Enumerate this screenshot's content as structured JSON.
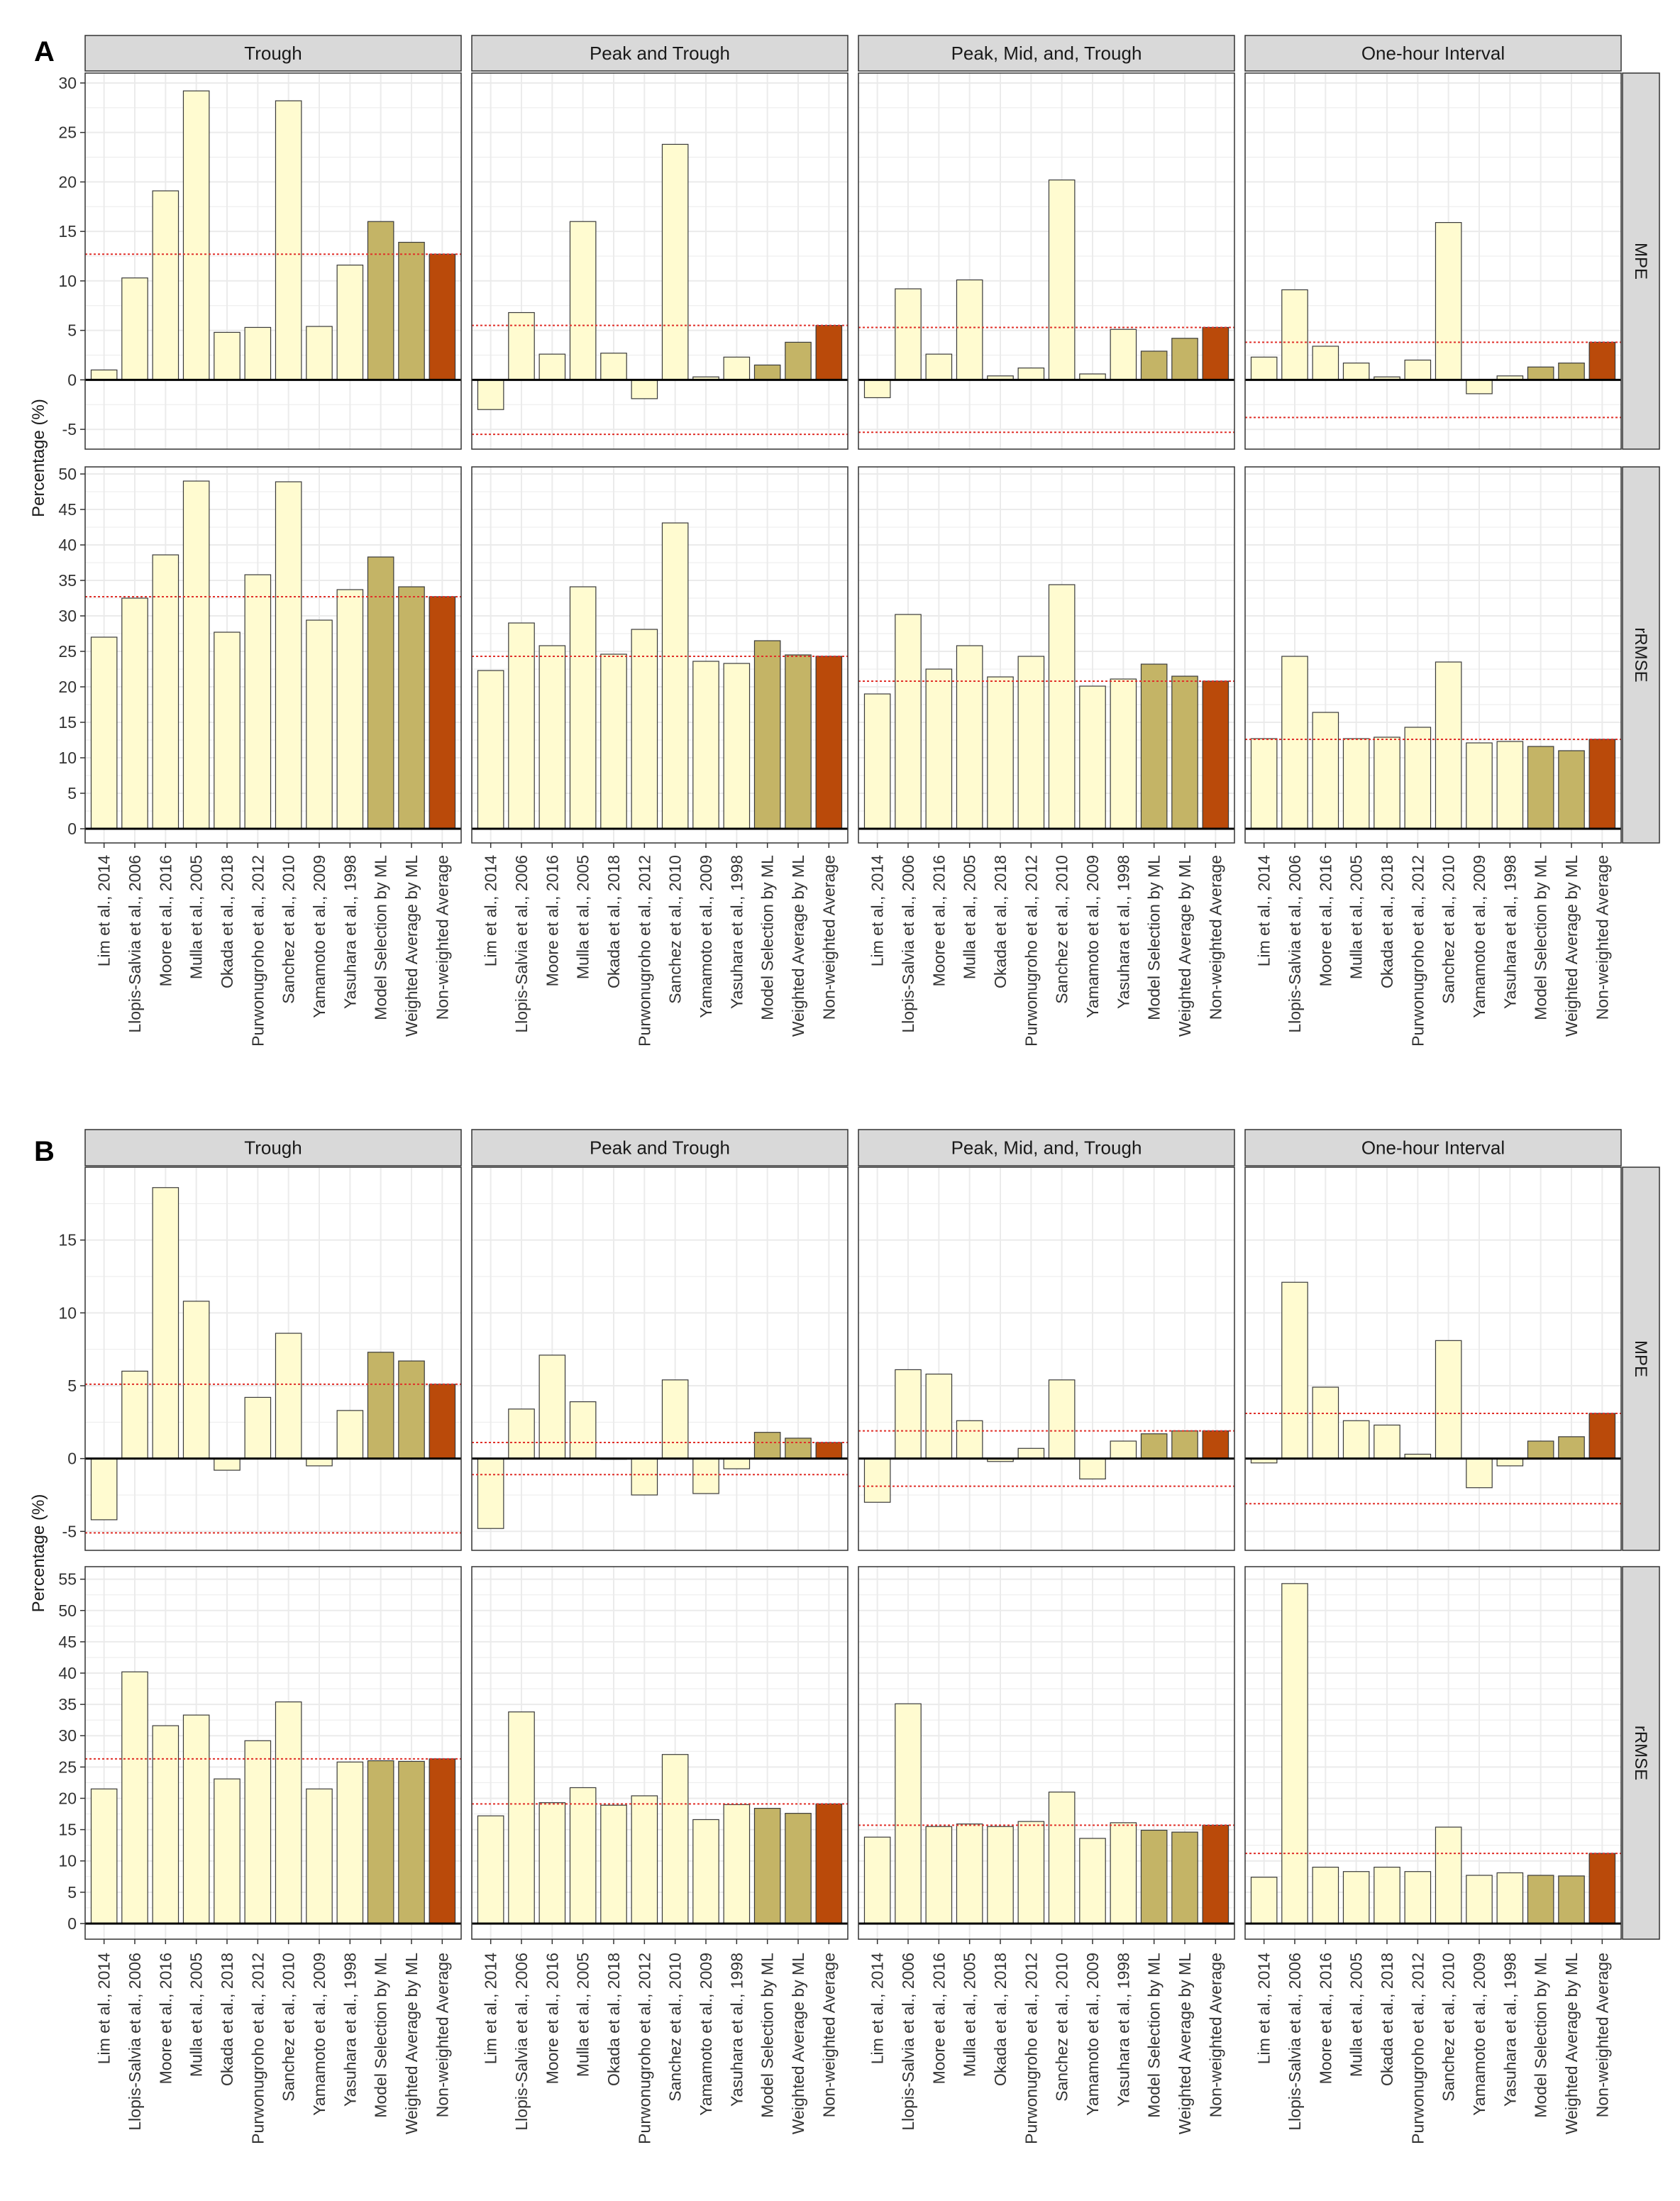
{
  "colors": {
    "study": "#FFFBD0",
    "ml": "#C4B466",
    "average": "#BA4A0A",
    "strip": "#D9D9D9",
    "panel_border": "#333333",
    "grid": "#EBEBEB",
    "ref_line": "#E0302A",
    "zero_line": "#000000"
  },
  "chart_data": [
    {
      "panel_label": "A",
      "type": "bar",
      "ylabel": "Percentage (%)",
      "facet_cols": [
        "Trough",
        "Peak and Trough",
        "Peak, Mid, and, Trough",
        "One-hour Interval"
      ],
      "facet_rows": [
        "MPE",
        "rRMSE"
      ],
      "categories": [
        "Lim et al., 2014",
        "Llopis-Salvia et al., 2006",
        "Moore et al., 2016",
        "Mulla et al., 2005",
        "Okada et al., 2018",
        "Purwonugroho et al., 2012",
        "Sanchez et al., 2010",
        "Yamamoto et al., 2009",
        "Yasuhara et al., 1998",
        "Model Selection by ML",
        "Weighted Average by ML",
        "Non-weighted Average"
      ],
      "category_groups": [
        "study",
        "study",
        "study",
        "study",
        "study",
        "study",
        "study",
        "study",
        "study",
        "ml",
        "ml",
        "average"
      ],
      "rows": [
        {
          "name": "MPE",
          "ylim": [
            -7,
            31
          ],
          "ticks": [
            -5,
            0,
            5,
            10,
            15,
            20,
            25,
            30
          ],
          "tick_labels": [
            "-5",
            "0",
            "5",
            "10",
            "15",
            "20",
            "25",
            "30"
          ],
          "series": [
            {
              "name": "Trough",
              "values": [
                1.0,
                10.3,
                19.1,
                29.2,
                4.8,
                5.3,
                28.2,
                5.4,
                11.6,
                16.0,
                13.9,
                12.7
              ],
              "ref_lines": [
                12.7
              ]
            },
            {
              "name": "Peak and Trough",
              "values": [
                -3.0,
                6.8,
                2.6,
                16.0,
                2.7,
                -1.9,
                23.8,
                0.3,
                2.3,
                1.5,
                3.8,
                5.5
              ],
              "ref_lines": [
                5.5,
                -5.5
              ]
            },
            {
              "name": "Peak, Mid, and, Trough",
              "values": [
                -1.8,
                9.2,
                2.6,
                10.1,
                0.4,
                1.2,
                20.2,
                0.6,
                5.1,
                2.9,
                4.2,
                5.3
              ],
              "ref_lines": [
                5.3,
                -5.3
              ]
            },
            {
              "name": "One-hour Interval",
              "values": [
                2.3,
                9.1,
                3.4,
                1.7,
                0.3,
                2.0,
                15.9,
                -1.4,
                0.4,
                1.3,
                1.7,
                3.8
              ],
              "ref_lines": [
                3.8,
                -3.8
              ]
            }
          ]
        },
        {
          "name": "rRMSE",
          "ylim": [
            -2,
            51
          ],
          "ticks": [
            0,
            5,
            10,
            15,
            20,
            25,
            30,
            35,
            40,
            45,
            50
          ],
          "tick_labels": [
            "0",
            "5",
            "10",
            "15",
            "20",
            "25",
            "30",
            "35",
            "40",
            "45",
            "50"
          ],
          "series": [
            {
              "name": "Trough",
              "values": [
                27.0,
                32.5,
                38.6,
                49.0,
                27.7,
                35.8,
                48.9,
                29.4,
                33.7,
                38.3,
                34.1,
                32.7
              ],
              "ref_lines": [
                32.7
              ]
            },
            {
              "name": "Peak and Trough",
              "values": [
                22.3,
                29.0,
                25.8,
                34.1,
                24.6,
                28.1,
                43.1,
                23.6,
                23.3,
                26.5,
                24.5,
                24.3
              ],
              "ref_lines": [
                24.3
              ]
            },
            {
              "name": "Peak, Mid, and, Trough",
              "values": [
                19.0,
                30.2,
                22.5,
                25.8,
                21.4,
                24.3,
                34.4,
                20.1,
                21.1,
                23.2,
                21.5,
                20.8
              ],
              "ref_lines": [
                20.8
              ]
            },
            {
              "name": "One-hour Interval",
              "values": [
                12.7,
                24.3,
                16.4,
                12.7,
                12.9,
                14.3,
                23.5,
                12.1,
                12.3,
                11.6,
                11.0,
                12.6
              ],
              "ref_lines": [
                12.6
              ]
            }
          ]
        }
      ]
    },
    {
      "panel_label": "B",
      "type": "bar",
      "ylabel": "Percentage (%)",
      "facet_cols": [
        "Trough",
        "Peak and Trough",
        "Peak, Mid, and, Trough",
        "One-hour Interval"
      ],
      "facet_rows": [
        "MPE",
        "rRMSE"
      ],
      "categories": [
        "Lim et al., 2014",
        "Llopis-Salvia et al., 2006",
        "Moore et al., 2016",
        "Mulla et al., 2005",
        "Okada et al., 2018",
        "Purwonugroho et al., 2012",
        "Sanchez et al., 2010",
        "Yamamoto et al., 2009",
        "Yasuhara et al., 1998",
        "Model Selection by ML",
        "Weighted Average by ML",
        "Non-weighted Average"
      ],
      "category_groups": [
        "study",
        "study",
        "study",
        "study",
        "study",
        "study",
        "study",
        "study",
        "study",
        "ml",
        "ml",
        "average"
      ],
      "rows": [
        {
          "name": "MPE",
          "ylim": [
            -6.3,
            20
          ],
          "ticks": [
            -5,
            0,
            5,
            10,
            15
          ],
          "tick_labels": [
            "-5",
            "0",
            "5",
            "10",
            "15"
          ],
          "series": [
            {
              "name": "Trough",
              "values": [
                -4.2,
                6.0,
                18.6,
                10.8,
                -0.8,
                4.2,
                8.6,
                -0.5,
                3.3,
                7.3,
                6.7,
                5.1
              ],
              "ref_lines": [
                5.1,
                -5.1
              ]
            },
            {
              "name": "Peak and Trough",
              "values": [
                -4.8,
                3.4,
                7.1,
                3.9,
                0.0,
                -2.5,
                5.4,
                -2.4,
                -0.7,
                1.8,
                1.4,
                1.1
              ],
              "ref_lines": [
                1.1,
                -1.1
              ]
            },
            {
              "name": "Peak, Mid, and, Trough",
              "values": [
                -3.0,
                6.1,
                5.8,
                2.6,
                -0.2,
                0.7,
                5.4,
                -1.4,
                1.2,
                1.7,
                1.9,
                1.9
              ],
              "ref_lines": [
                1.9,
                -1.9
              ]
            },
            {
              "name": "One-hour Interval",
              "values": [
                -0.3,
                12.1,
                4.9,
                2.6,
                2.3,
                0.3,
                8.1,
                -2.0,
                -0.5,
                1.2,
                1.5,
                3.1
              ],
              "ref_lines": [
                3.1,
                -3.1
              ]
            }
          ]
        },
        {
          "name": "rRMSE",
          "ylim": [
            -2.5,
            57
          ],
          "ticks": [
            0,
            5,
            10,
            15,
            20,
            25,
            30,
            35,
            40,
            45,
            50,
            55
          ],
          "tick_labels": [
            "0",
            "5",
            "10",
            "15",
            "20",
            "25",
            "30",
            "35",
            "40",
            "45",
            "50",
            "55"
          ],
          "series": [
            {
              "name": "Trough",
              "values": [
                21.5,
                40.2,
                31.6,
                33.3,
                23.1,
                29.2,
                35.4,
                21.5,
                25.8,
                26.0,
                25.9,
                26.3
              ],
              "ref_lines": [
                26.3
              ]
            },
            {
              "name": "Peak and Trough",
              "values": [
                17.2,
                33.8,
                19.3,
                21.7,
                18.9,
                20.4,
                27.0,
                16.6,
                19.0,
                18.4,
                17.6,
                19.1
              ],
              "ref_lines": [
                19.1
              ]
            },
            {
              "name": "Peak, Mid, and, Trough",
              "values": [
                13.8,
                35.1,
                15.5,
                15.9,
                15.5,
                16.3,
                21.0,
                13.6,
                16.1,
                14.9,
                14.6,
                15.7
              ],
              "ref_lines": [
                15.7
              ]
            },
            {
              "name": "One-hour Interval",
              "values": [
                7.4,
                54.3,
                9.0,
                8.3,
                9.0,
                8.3,
                15.4,
                7.7,
                8.1,
                7.7,
                7.6,
                11.2
              ],
              "ref_lines": [
                11.2
              ]
            }
          ]
        }
      ]
    }
  ]
}
